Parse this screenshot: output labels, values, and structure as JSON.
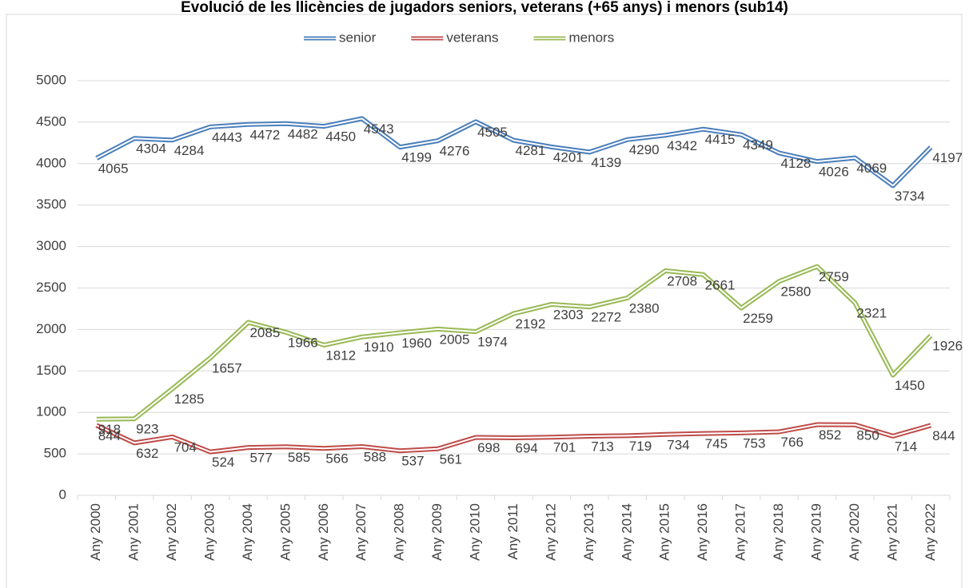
{
  "chart_data": {
    "type": "line",
    "title": "Evolució de les llicències de jugadors seniors, veterans (+65 anys) i menors (sub14)",
    "categories": [
      "Any 2000",
      "Any 2001",
      "Any 2002",
      "Any 2003",
      "Any 2004",
      "Any 2005",
      "Any 2006",
      "Any 2007",
      "Any 2008",
      "Any 2009",
      "Any 2010",
      "Any 2011",
      "Any 2012",
      "Any 2013",
      "Any 2014",
      "Any 2015",
      "Any 2016",
      "Any 2017",
      "Any 2018",
      "Any 2019",
      "Any 2020",
      "Any 2021",
      "Any 2022"
    ],
    "series": [
      {
        "name": "senior",
        "color": "#4a7ebb",
        "values": [
          4065,
          4304,
          4284,
          4443,
          4472,
          4482,
          4450,
          4543,
          4199,
          4276,
          4505,
          4281,
          4201,
          4139,
          4290,
          4342,
          4415,
          4349,
          4128,
          4026,
          4069,
          3734,
          4197
        ]
      },
      {
        "name": "veterans",
        "color": "#be4b48",
        "values": [
          844,
          632,
          704,
          524,
          577,
          585,
          566,
          588,
          537,
          561,
          698,
          694,
          701,
          713,
          719,
          734,
          745,
          753,
          766,
          852,
          850,
          714,
          844
        ]
      },
      {
        "name": "menors",
        "color": "#98b954",
        "values": [
          918,
          923,
          1285,
          1657,
          2085,
          1966,
          1812,
          1910,
          1960,
          2005,
          1974,
          2192,
          2303,
          2272,
          2380,
          2708,
          2661,
          2259,
          2580,
          2759,
          2321,
          1450,
          1926
        ]
      }
    ],
    "ylim": [
      0,
      5000
    ],
    "yticks": [
      0,
      500,
      1000,
      1500,
      2000,
      2500,
      3000,
      3500,
      4000,
      4500,
      5000
    ],
    "grid": true,
    "legend": "top"
  }
}
